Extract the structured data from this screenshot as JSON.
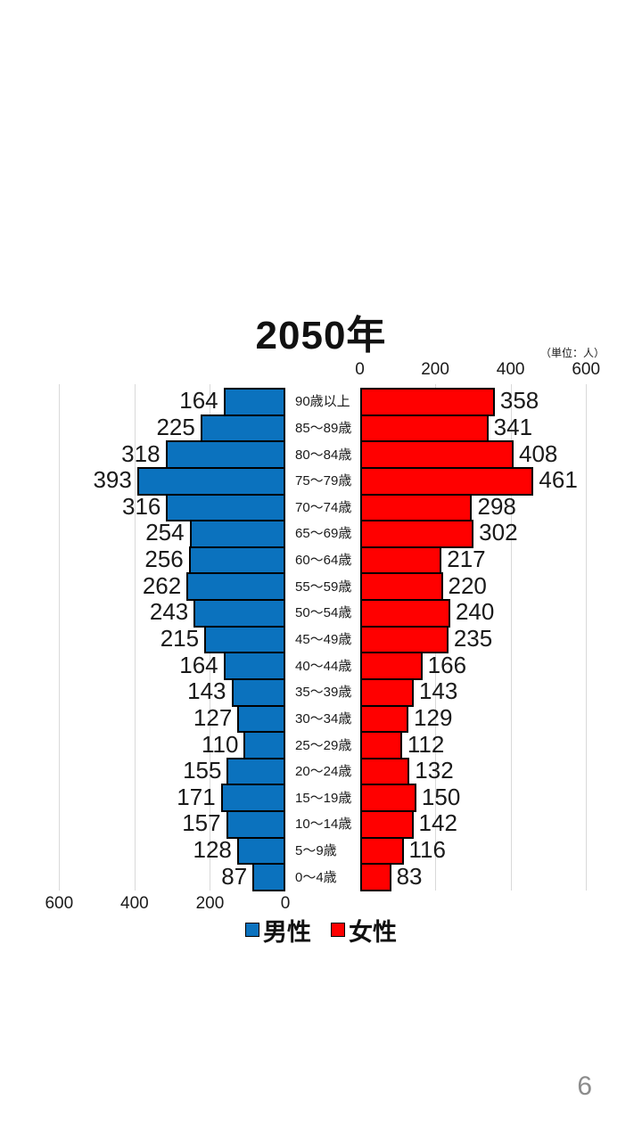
{
  "title": "2050年",
  "unit_label": "（単位：人）",
  "page_number": "6",
  "legend": {
    "male": "男性",
    "female": "女性"
  },
  "colors": {
    "male": "#0b72be",
    "female": "#ff0000",
    "bar_border": "#000000",
    "gridline": "#d9d9d9",
    "page_number": "#8c8c8c"
  },
  "chart_data": {
    "type": "bar",
    "subtype": "population-pyramid",
    "title": "2050年",
    "unit_label": "（単位：人）",
    "categories": [
      "90歳以上",
      "85～89歳",
      "80～84歳",
      "75～79歳",
      "70～74歳",
      "65～69歳",
      "60～64歳",
      "55～59歳",
      "50～54歳",
      "45～49歳",
      "40～44歳",
      "35～39歳",
      "30～34歳",
      "25～29歳",
      "20～24歳",
      "15～19歳",
      "10～14歳",
      "5～9歳",
      "0～4歳"
    ],
    "series": [
      {
        "name": "男性",
        "side": "left",
        "color": "#0b72be",
        "values": [
          164,
          225,
          318,
          393,
          316,
          254,
          256,
          262,
          243,
          215,
          164,
          143,
          127,
          110,
          155,
          171,
          157,
          128,
          87
        ]
      },
      {
        "name": "女性",
        "side": "right",
        "color": "#ff0000",
        "values": [
          358,
          341,
          408,
          461,
          298,
          302,
          217,
          220,
          240,
          235,
          166,
          143,
          129,
          112,
          132,
          150,
          142,
          116,
          83
        ]
      }
    ],
    "axis_ticks_left": [
      600,
      400,
      200,
      0
    ],
    "axis_ticks_right": [
      0,
      200,
      400,
      600
    ],
    "xlim": [
      0,
      600
    ],
    "grid": true,
    "legend_position": "bottom"
  }
}
